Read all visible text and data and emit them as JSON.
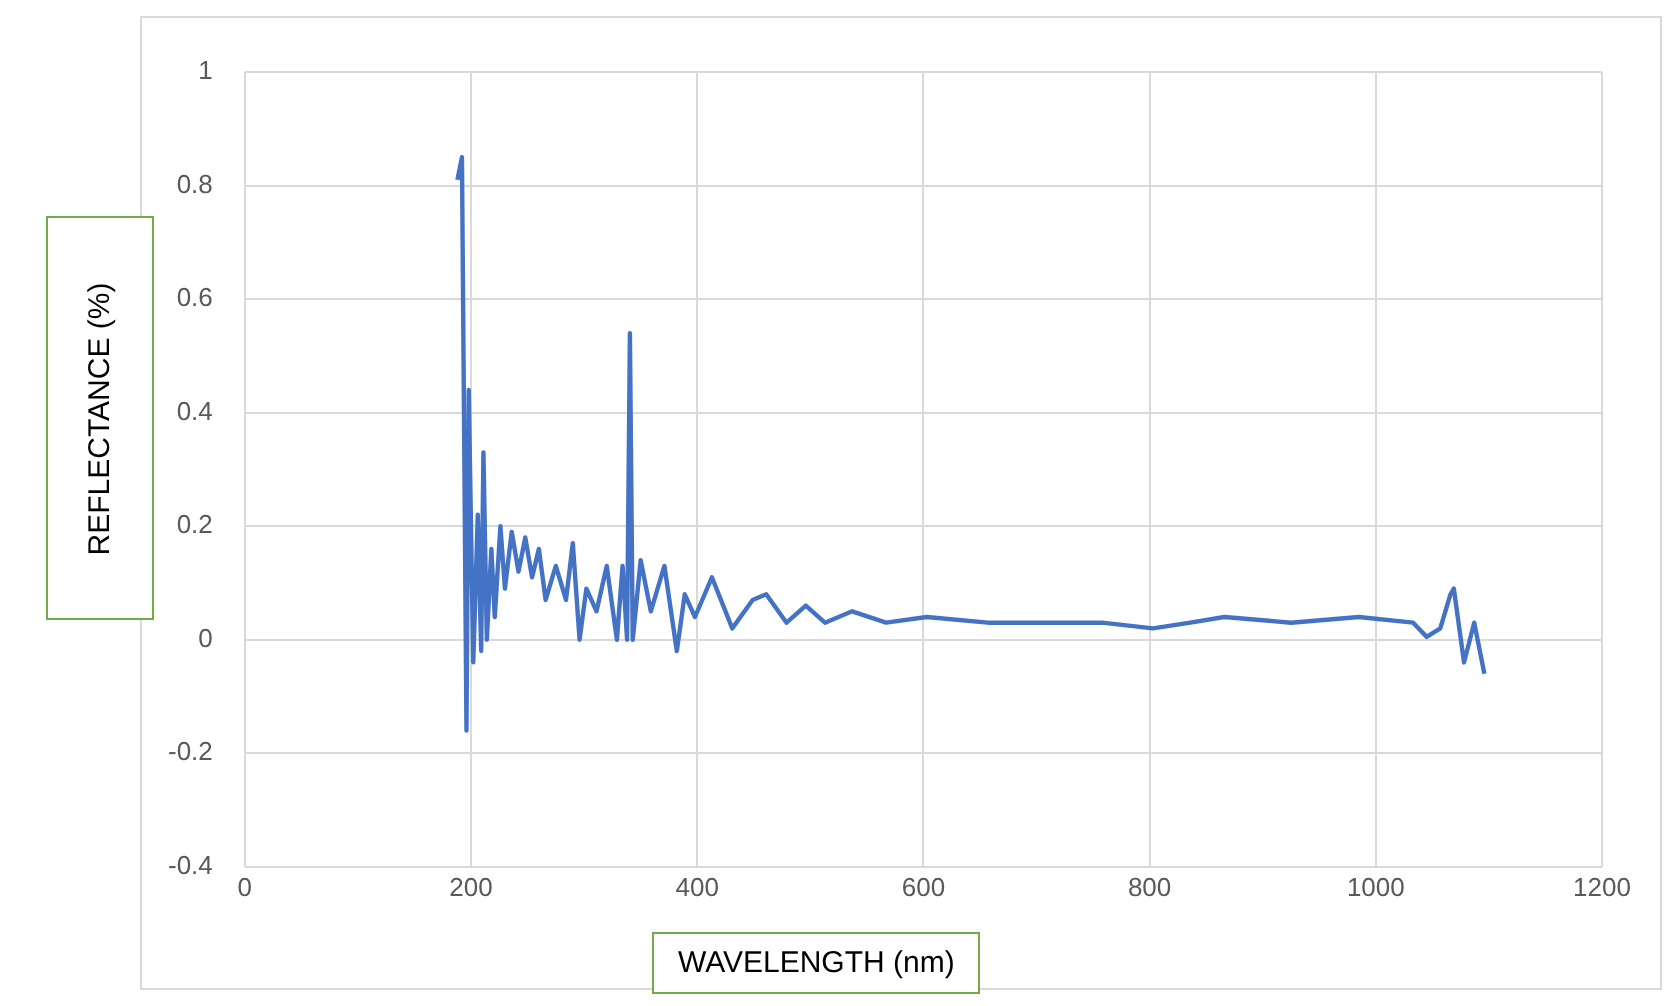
{
  "chart_data": {
    "type": "line",
    "xlabel": "WAVELENGTH (nm)",
    "ylabel": "REFLECTANCE (%)",
    "xlim": [
      0,
      1200
    ],
    "xticks": [
      0,
      200,
      400,
      600,
      800,
      1000,
      1200
    ],
    "ylim": [
      -0.4,
      1
    ],
    "yticks": [
      -0.4,
      -0.2,
      0,
      0.2,
      0.4,
      0.6,
      0.8,
      1
    ],
    "grid": true,
    "marker": "none",
    "line_style": "solid",
    "series": [
      {
        "color": "#4472c4",
        "x": [
          188,
          192,
          196,
          198,
          202,
          206,
          209,
          211,
          214,
          218,
          221,
          226,
          230,
          236,
          242,
          248,
          254,
          260,
          266,
          275,
          284,
          290,
          296,
          302,
          311,
          320,
          329,
          334,
          338,
          340.5,
          343,
          350,
          359,
          371,
          382,
          389,
          398,
          413,
          431,
          449,
          461,
          479,
          496,
          513,
          537,
          567,
          603,
          657,
          704,
          758,
          803,
          836,
          866,
          925,
          985,
          1033,
          1045,
          1057,
          1066,
          1069,
          1078,
          1087,
          1096
        ],
        "values": [
          0.81,
          0.85,
          -0.16,
          0.44,
          -0.04,
          0.22,
          -0.02,
          0.33,
          0,
          0.16,
          0.04,
          0.2,
          0.09,
          0.19,
          0.12,
          0.18,
          0.11,
          0.16,
          0.07,
          0.13,
          0.07,
          0.17,
          0,
          0.09,
          0.05,
          0.13,
          0,
          0.13,
          0,
          0.54,
          0,
          0.14,
          0.05,
          0.13,
          -0.02,
          0.08,
          0.04,
          0.11,
          0.02,
          0.07,
          0.08,
          0.03,
          0.06,
          0.03,
          0.05,
          0.03,
          0.04,
          0.03,
          0.03,
          0.03,
          0.02,
          0.03,
          0.04,
          0.03,
          0.04,
          0.03,
          0.005,
          0.02,
          0.08,
          0.09,
          -0.04,
          0.03,
          -0.06
        ]
      }
    ]
  }
}
